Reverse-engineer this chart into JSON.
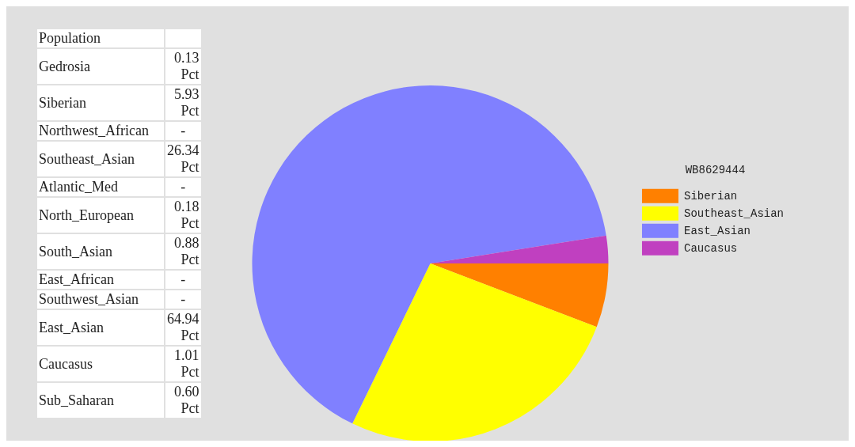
{
  "chart_data": [
    {
      "type": "other",
      "title": "Population",
      "categories": [
        "Gedrosia",
        "Siberian",
        "Northwest_African",
        "Southeast_Asian",
        "Atlantic_Med",
        "North_European",
        "South_Asian",
        "East_African",
        "Southwest_Asian",
        "East_Asian",
        "Caucasus",
        "Sub_Saharan"
      ],
      "values": [
        0.13,
        5.93,
        null,
        26.34,
        null,
        0.18,
        0.88,
        null,
        null,
        64.94,
        1.01,
        0.6
      ],
      "value_labels": [
        "0.13 Pct",
        "5.93 Pct",
        "-",
        "26.34 Pct",
        "-",
        "0.18 Pct",
        "0.88 Pct",
        "-",
        "-",
        "64.94 Pct",
        "1.01 Pct",
        "0.60 Pct"
      ]
    },
    {
      "type": "pie",
      "legend_title": "WB8629444",
      "legend": "right",
      "categories": [
        "Siberian",
        "Southeast_Asian",
        "East_Asian",
        "Caucasus"
      ],
      "values": [
        5.8,
        26.4,
        65.3,
        2.5
      ],
      "colors": [
        "#ff8000",
        "#ffff00",
        "#8080ff",
        "#c040c0"
      ]
    }
  ]
}
